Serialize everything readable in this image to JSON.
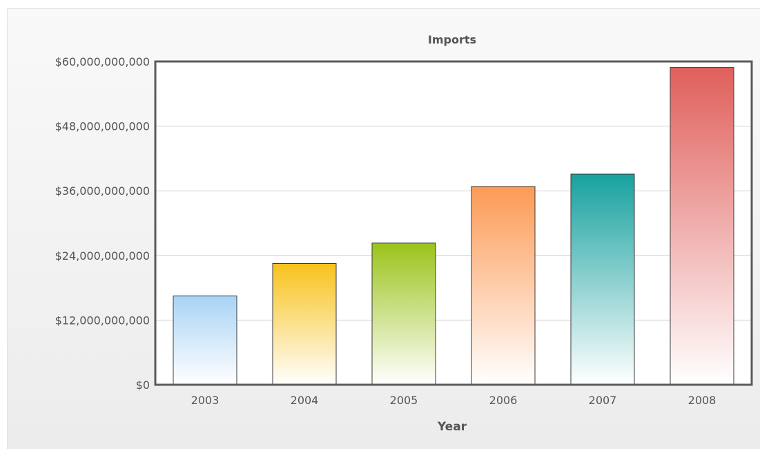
{
  "chart_data": {
    "type": "bar",
    "title": "Imports",
    "xlabel": "Year",
    "ylabel": "",
    "categories": [
      "2003",
      "2004",
      "2005",
      "2006",
      "2007",
      "2008"
    ],
    "values": [
      16500000000,
      22500000000,
      26300000000,
      36800000000,
      39100000000,
      58900000000
    ],
    "ylim": [
      0,
      60000000000
    ],
    "yticks": [
      0,
      12000000000,
      24000000000,
      36000000000,
      48000000000,
      60000000000
    ],
    "ytick_labels": [
      "$0",
      "$12,000,000,000",
      "$24,000,000,000",
      "$36,000,000,000",
      "$48,000,000,000",
      "$60,000,000,000"
    ],
    "grid": true,
    "legend": "none",
    "bar_colors": [
      "#a9d3f5",
      "#f8c21c",
      "#9bc31a",
      "#fc9a55",
      "#17a19f",
      "#e05f5a"
    ]
  }
}
